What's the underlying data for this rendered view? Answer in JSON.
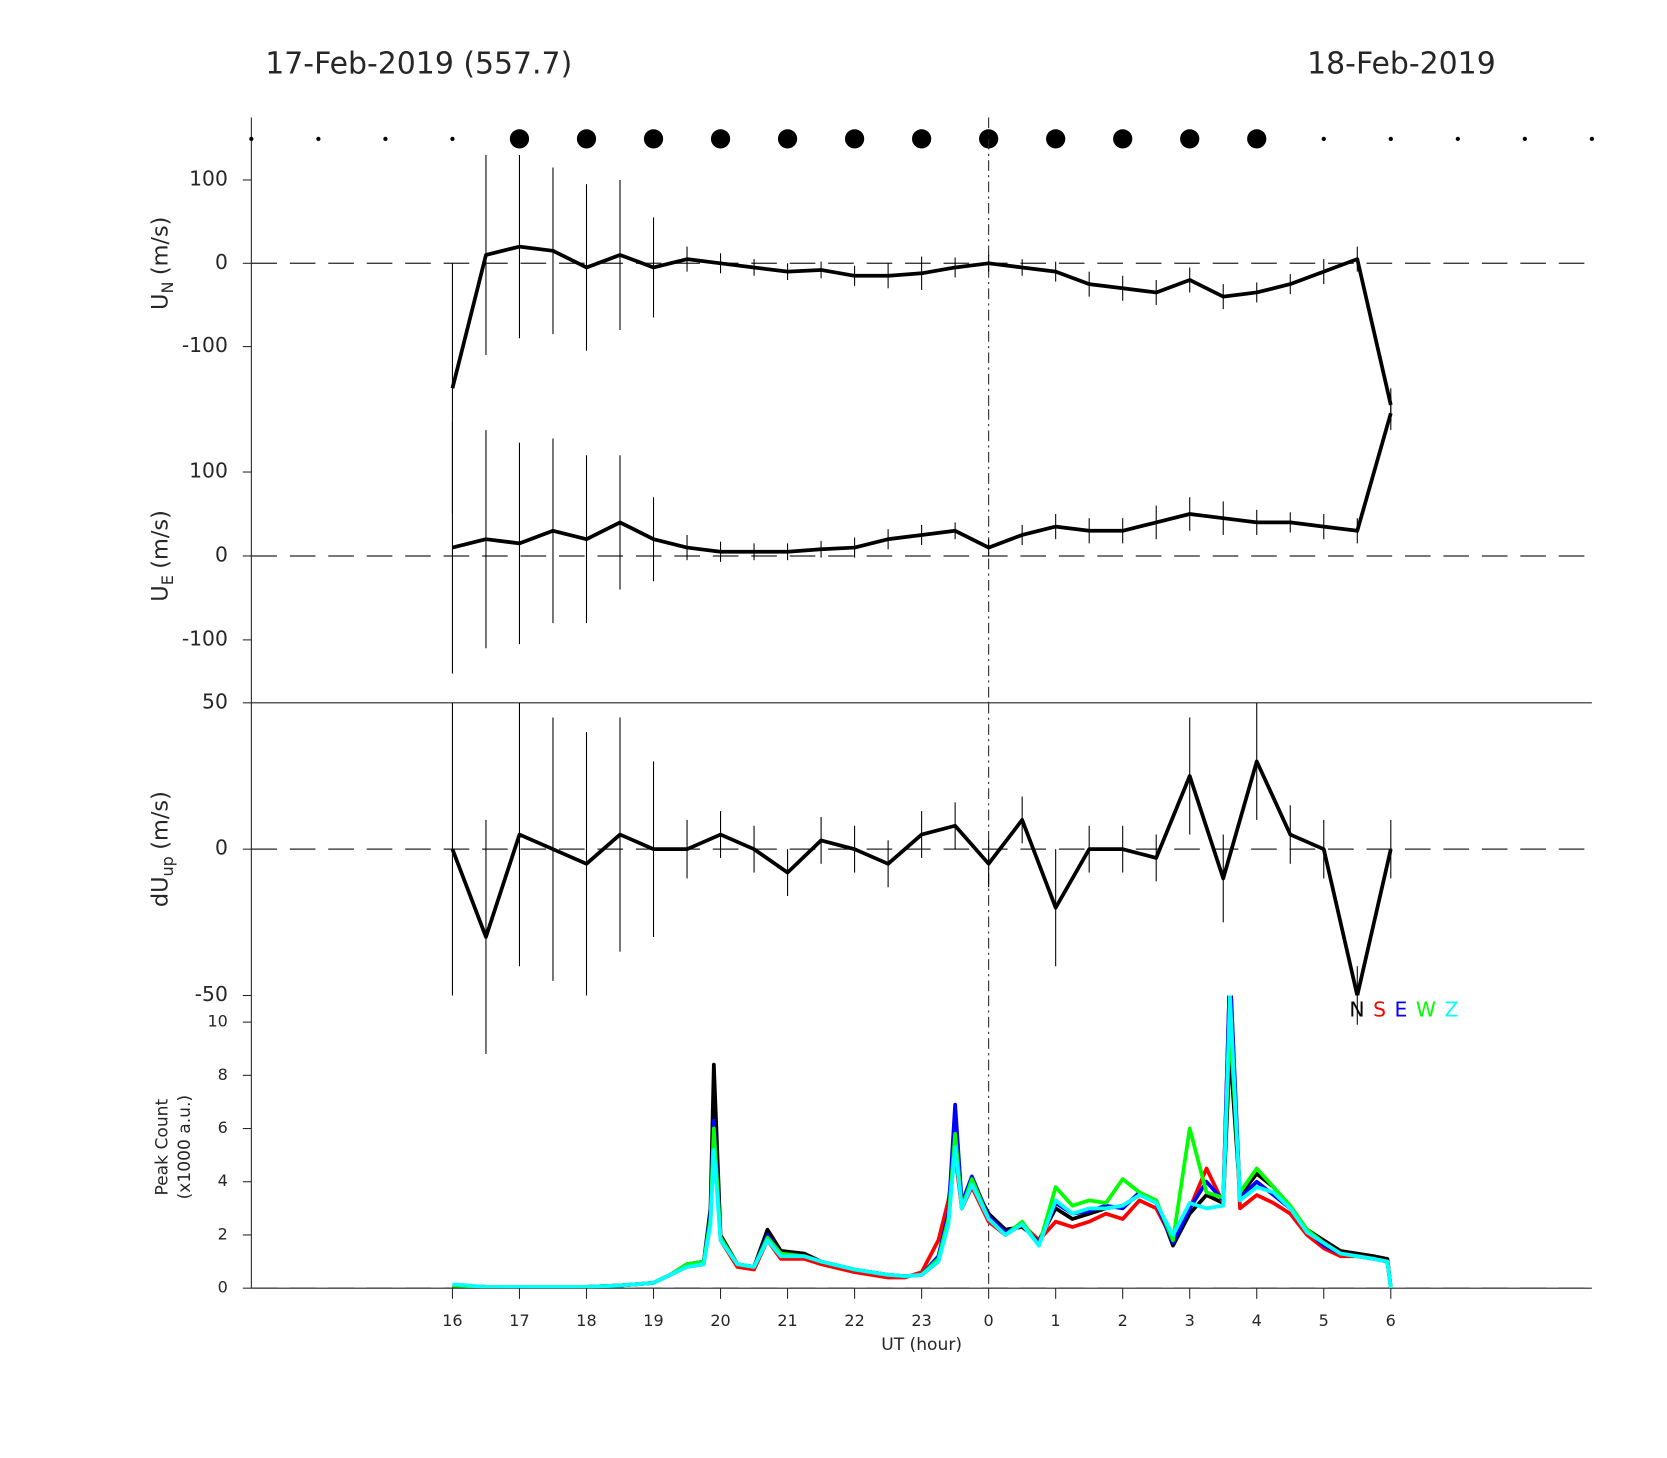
{
  "chart_data": [
    {
      "type": "scatter",
      "title": "17-Feb-2019 (557.7)",
      "subtitle": "18-Feb-2019",
      "xlim": [
        13,
        33
      ],
      "x": [
        13,
        14,
        15,
        16,
        17,
        18,
        19,
        20,
        21,
        22,
        23,
        24,
        25,
        26,
        27,
        28,
        29,
        30,
        31,
        32,
        33
      ],
      "sizes": [
        2,
        2,
        2,
        2,
        9,
        9,
        9,
        9,
        9,
        9,
        9,
        9,
        9,
        9,
        9,
        9,
        2,
        2,
        2,
        2,
        2
      ],
      "color": "#000000"
    },
    {
      "type": "errorline",
      "ylabel": {
        "text": "U",
        "sub": "N",
        "unit": "(m/s)"
      },
      "xlim": [
        13,
        33
      ],
      "ylim": [
        -175,
        175
      ],
      "yticks": [
        -100,
        0,
        100
      ],
      "zero_line": true,
      "vline": 24,
      "color": "#000000",
      "x": [
        16,
        16.5,
        17,
        17.5,
        18,
        18.5,
        19,
        19.5,
        20,
        20.5,
        21,
        21.5,
        22,
        22.5,
        23,
        23.5,
        24,
        24.5,
        25,
        25.5,
        26,
        26.5,
        27,
        27.5,
        28,
        28.5,
        29,
        29.5,
        30
      ],
      "values": [
        -150,
        10,
        20,
        15,
        -5,
        10,
        -5,
        5,
        0,
        -5,
        -10,
        -8,
        -15,
        -15,
        -12,
        -5,
        0,
        -5,
        -10,
        -25,
        -30,
        -35,
        -20,
        -40,
        -35,
        -25,
        -10,
        5,
        -170
      ],
      "errors": [
        150,
        120,
        110,
        100,
        100,
        90,
        60,
        15,
        12,
        10,
        10,
        10,
        12,
        15,
        20,
        12,
        10,
        10,
        12,
        15,
        15,
        15,
        15,
        15,
        12,
        12,
        15,
        15,
        20
      ]
    },
    {
      "type": "errorline",
      "ylabel": {
        "text": "U",
        "sub": "E",
        "unit": "(m/s)"
      },
      "xlim": [
        13,
        33
      ],
      "ylim": [
        -175,
        175
      ],
      "yticks": [
        -100,
        0,
        100
      ],
      "zero_line": true,
      "vline": 24,
      "color": "#000000",
      "x": [
        16,
        16.5,
        17,
        17.5,
        18,
        18.5,
        19,
        19.5,
        20,
        20.5,
        21,
        21.5,
        22,
        22.5,
        23,
        23.5,
        24,
        24.5,
        25,
        25.5,
        26,
        26.5,
        27,
        27.5,
        28,
        28.5,
        29,
        29.5,
        30
      ],
      "values": [
        10,
        20,
        15,
        30,
        20,
        40,
        20,
        10,
        5,
        5,
        5,
        8,
        10,
        20,
        25,
        30,
        10,
        25,
        35,
        30,
        30,
        40,
        50,
        45,
        40,
        40,
        35,
        30,
        170
      ],
      "errors": [
        150,
        130,
        120,
        110,
        100,
        80,
        50,
        15,
        12,
        10,
        10,
        10,
        12,
        12,
        12,
        10,
        10,
        12,
        15,
        15,
        15,
        20,
        20,
        20,
        15,
        12,
        15,
        15,
        20
      ]
    },
    {
      "type": "errorline",
      "ylabel": {
        "text": "dU",
        "sub": "up",
        "unit": "(m/s)"
      },
      "xlim": [
        13,
        33
      ],
      "ylim": [
        -50,
        50
      ],
      "yticks": [
        -50,
        0,
        50
      ],
      "zero_line": true,
      "vline": 24,
      "color": "#000000",
      "x": [
        16,
        16.5,
        17,
        17.5,
        18,
        18.5,
        19,
        19.5,
        20,
        20.5,
        21,
        21.5,
        22,
        22.5,
        23,
        23.5,
        24,
        24.5,
        25,
        25.5,
        26,
        26.5,
        27,
        27.5,
        28,
        28.5,
        29,
        29.5,
        30
      ],
      "values": [
        0,
        -30,
        5,
        0,
        -5,
        5,
        0,
        0,
        5,
        0,
        -8,
        3,
        0,
        -5,
        5,
        8,
        -5,
        10,
        -20,
        0,
        0,
        -3,
        25,
        -10,
        30,
        5,
        0,
        -50,
        0
      ],
      "errors": [
        50,
        40,
        45,
        45,
        45,
        40,
        30,
        10,
        8,
        8,
        8,
        8,
        8,
        8,
        8,
        8,
        8,
        8,
        20,
        8,
        8,
        8,
        20,
        15,
        20,
        10,
        10,
        10,
        10
      ]
    },
    {
      "type": "line",
      "ylabel_lines": [
        "Peak Count",
        "(x1000 a.u.)"
      ],
      "xlabel": "UT (hour)",
      "xlim": [
        13,
        33
      ],
      "ylim": [
        0,
        11
      ],
      "yticks": [
        0,
        2,
        4,
        6,
        8,
        10
      ],
      "vline": 24,
      "legend": "top-right",
      "xticks": [
        16,
        17,
        18,
        19,
        20,
        21,
        22,
        23,
        {
          "value": 24,
          "label": "0"
        },
        {
          "value": 25,
          "label": "1"
        },
        {
          "value": 26,
          "label": "2"
        },
        {
          "value": 27,
          "label": "3"
        },
        {
          "value": 28,
          "label": "4"
        },
        {
          "value": 29,
          "label": "5"
        },
        {
          "value": 30,
          "label": "6"
        }
      ],
      "x": [
        16,
        16.5,
        17,
        17.5,
        18,
        18.5,
        19,
        19.25,
        19.5,
        19.75,
        19.85,
        19.9,
        20,
        20.25,
        20.5,
        20.7,
        20.9,
        21.25,
        21.5,
        22,
        22.5,
        22.75,
        23,
        23.25,
        23.4,
        23.5,
        23.6,
        23.75,
        24,
        24.25,
        24.5,
        24.75,
        25,
        25.25,
        25.5,
        25.75,
        26,
        26.25,
        26.5,
        26.75,
        27,
        27.25,
        27.5,
        27.6,
        27.75,
        28,
        28.25,
        28.5,
        28.75,
        29,
        29.25,
        29.5,
        29.75,
        29.95,
        30
      ],
      "series": [
        {
          "name": "N",
          "color": "#000000",
          "values": [
            0.1,
            0.05,
            0.05,
            0.05,
            0.05,
            0.1,
            0.2,
            0.5,
            0.9,
            1.0,
            3,
            8.4,
            2,
            0.9,
            0.8,
            2.2,
            1.4,
            1.3,
            1.0,
            0.7,
            0.5,
            0.45,
            0.5,
            1.0,
            2.5,
            5.5,
            3,
            4.0,
            2.8,
            2.2,
            2.3,
            1.8,
            3.0,
            2.6,
            2.8,
            3.0,
            3.1,
            3.5,
            3.3,
            1.6,
            2.8,
            3.5,
            3.2,
            9.0,
            3.5,
            4.3,
            3.8,
            3.0,
            2.2,
            1.8,
            1.4,
            1.3,
            1.2,
            1.1,
            0
          ]
        },
        {
          "name": "S",
          "color": "#ff0000",
          "values": [
            0.1,
            0.05,
            0.05,
            0.05,
            0.05,
            0.1,
            0.2,
            0.5,
            0.8,
            0.9,
            2.5,
            6.0,
            1.8,
            0.8,
            0.7,
            1.8,
            1.1,
            1.1,
            0.9,
            0.6,
            0.4,
            0.4,
            0.6,
            1.8,
            3.3,
            5.0,
            3,
            3.8,
            2.5,
            2.0,
            2.4,
            1.8,
            2.5,
            2.3,
            2.5,
            2.8,
            2.6,
            3.3,
            3.0,
            1.8,
            3.0,
            4.5,
            3.2,
            12,
            3.0,
            3.5,
            3.2,
            2.8,
            2.0,
            1.5,
            1.2,
            1.2,
            1.1,
            1.0,
            0
          ]
        },
        {
          "name": "E",
          "color": "#0000ff",
          "values": [
            0.1,
            0.05,
            0.05,
            0.05,
            0.05,
            0.1,
            0.2,
            0.5,
            0.9,
            1.0,
            2.8,
            6.3,
            1.9,
            0.9,
            0.8,
            2.0,
            1.3,
            1.2,
            1.0,
            0.7,
            0.5,
            0.45,
            0.5,
            1.2,
            2.8,
            6.9,
            3.2,
            4.2,
            2.7,
            2.1,
            2.4,
            1.7,
            3.2,
            2.8,
            2.9,
            3.1,
            3.0,
            3.6,
            3.2,
            1.7,
            3.0,
            4.0,
            3.3,
            12,
            3.4,
            4.0,
            3.5,
            3.0,
            2.2,
            1.6,
            1.3,
            1.2,
            1.1,
            1.0,
            0
          ]
        },
        {
          "name": "W",
          "color": "#00ff00",
          "values": [
            0.1,
            0.05,
            0.05,
            0.05,
            0.05,
            0.1,
            0.2,
            0.5,
            0.9,
            1.0,
            2.6,
            6.0,
            1.9,
            0.9,
            0.8,
            1.9,
            1.3,
            1.2,
            1.0,
            0.7,
            0.5,
            0.45,
            0.5,
            1.1,
            2.6,
            5.8,
            3.0,
            4.1,
            2.6,
            2.0,
            2.5,
            1.6,
            3.8,
            3.1,
            3.3,
            3.2,
            4.1,
            3.6,
            3.3,
            1.8,
            6.0,
            3.6,
            3.4,
            10,
            3.6,
            4.5,
            3.8,
            3.1,
            2.2,
            1.7,
            1.3,
            1.2,
            1.1,
            1.0,
            0
          ]
        },
        {
          "name": "Z",
          "color": "#00ffff",
          "values": [
            0.15,
            0.05,
            0.05,
            0.05,
            0.05,
            0.1,
            0.2,
            0.5,
            0.8,
            0.9,
            2.4,
            5.2,
            1.8,
            0.9,
            0.8,
            1.8,
            1.2,
            1.2,
            1.0,
            0.7,
            0.5,
            0.45,
            0.5,
            1.0,
            2.4,
            5.3,
            3.0,
            3.9,
            2.6,
            2.0,
            2.4,
            1.6,
            3.3,
            2.8,
            3.0,
            3.0,
            3.1,
            3.5,
            3.2,
            2.0,
            3.2,
            3.0,
            3.1,
            11,
            3.3,
            3.8,
            3.6,
            3.0,
            2.1,
            1.7,
            1.3,
            1.2,
            1.1,
            1.0,
            0
          ]
        }
      ]
    }
  ]
}
